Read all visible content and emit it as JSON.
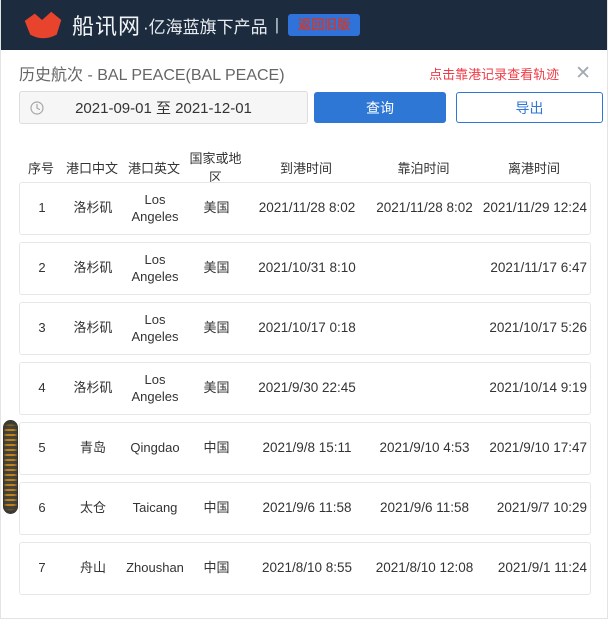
{
  "header": {
    "brand": "船讯网",
    "brand_suffix": "·亿海蓝旗下产品",
    "divider": "|",
    "back_button": "返回旧版"
  },
  "title_bar": {
    "title": "历史航次 - BAL PEACE(BAL PEACE)",
    "hint": "点击靠港记录查看轨迹",
    "close_icon": "✕"
  },
  "filter": {
    "date_range": "2021-09-01 至 2021-12-01",
    "query_label": "查询",
    "export_label": "导出"
  },
  "table": {
    "columns": [
      "序号",
      "港口中文",
      "港口英文",
      "国家或地区",
      "到港时间",
      "靠泊时间",
      "离港时间"
    ],
    "rows": [
      {
        "no": "1",
        "port_cn": "洛杉矶",
        "port_en": "Los Angeles",
        "country": "美国",
        "arrival": "2021/11/28 8:02",
        "berth": "2021/11/28 8:02",
        "departure": "2021/11/29 12:24"
      },
      {
        "no": "2",
        "port_cn": "洛杉矶",
        "port_en": "Los Angeles",
        "country": "美国",
        "arrival": "2021/10/31 8:10",
        "berth": "",
        "departure": "2021/11/17 6:47"
      },
      {
        "no": "3",
        "port_cn": "洛杉矶",
        "port_en": "Los Angeles",
        "country": "美国",
        "arrival": "2021/10/17 0:18",
        "berth": "",
        "departure": "2021/10/17 5:26"
      },
      {
        "no": "4",
        "port_cn": "洛杉矶",
        "port_en": "Los Angeles",
        "country": "美国",
        "arrival": "2021/9/30 22:45",
        "berth": "",
        "departure": "2021/10/14 9:19"
      },
      {
        "no": "5",
        "port_cn": "青岛",
        "port_en": "Qingdao",
        "country": "中国",
        "arrival": "2021/9/8 15:11",
        "berth": "2021/9/10 4:53",
        "departure": "2021/9/10 17:47"
      },
      {
        "no": "6",
        "port_cn": "太仓",
        "port_en": "Taicang",
        "country": "中国",
        "arrival": "2021/9/6 11:58",
        "berth": "2021/9/6 11:58",
        "departure": "2021/9/7 10:29"
      },
      {
        "no": "7",
        "port_cn": "舟山",
        "port_en": "Zhoushan",
        "country": "中国",
        "arrival": "2021/8/10 8:55",
        "berth": "2021/8/10 12:08",
        "departure": "2021/9/1 11:24"
      }
    ]
  },
  "colors": {
    "topbar_navy": "#1c2b3e",
    "logo_red": "#e8432d",
    "accent_blue": "#2e77d5",
    "hint_red": "#ef3b46",
    "back_button_text_red": "#c53d35",
    "card_border": "#e7e7e7"
  }
}
